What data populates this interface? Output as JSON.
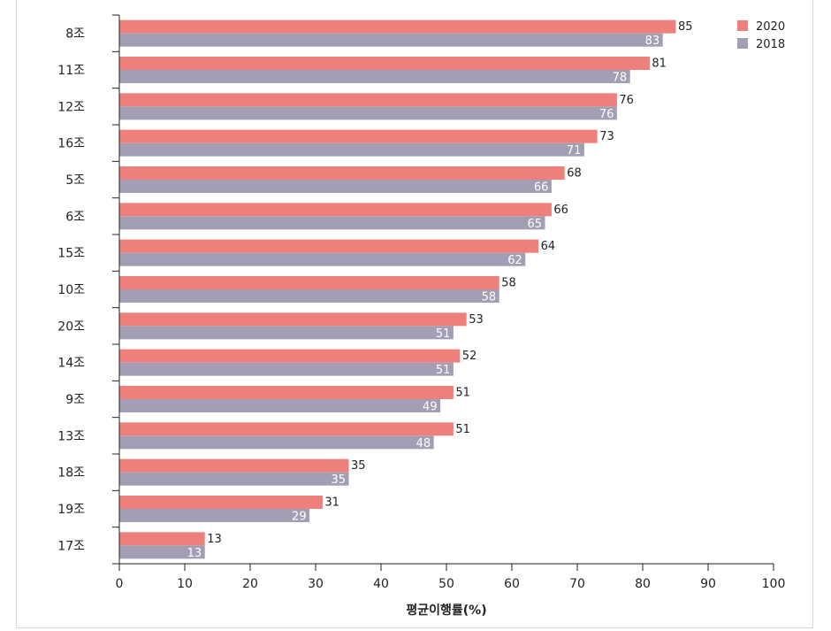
{
  "chart_data": {
    "type": "bar",
    "orientation": "horizontal",
    "categories": [
      "8조",
      "11조",
      "12조",
      "16조",
      "5조",
      "6조",
      "15조",
      "10조",
      "20조",
      "14조",
      "9조",
      "13조",
      "18조",
      "19조",
      "17조"
    ],
    "series": [
      {
        "name": "2020",
        "color": "#ef7f7a",
        "values": [
          85,
          81,
          76,
          73,
          68,
          66,
          64,
          58,
          53,
          52,
          51,
          51,
          35,
          31,
          13
        ]
      },
      {
        "name": "2018",
        "color": "#a39eb3",
        "values": [
          83,
          78,
          76,
          71,
          66,
          65,
          62,
          58,
          51,
          51,
          49,
          48,
          35,
          29,
          13
        ]
      }
    ],
    "xlabel": "평균이행률(%)",
    "xlim": [
      0,
      100
    ],
    "xticks": [
      0,
      10,
      20,
      30,
      40,
      50,
      60,
      70,
      80,
      90,
      100
    ],
    "legend": "top-right",
    "grid": false
  }
}
